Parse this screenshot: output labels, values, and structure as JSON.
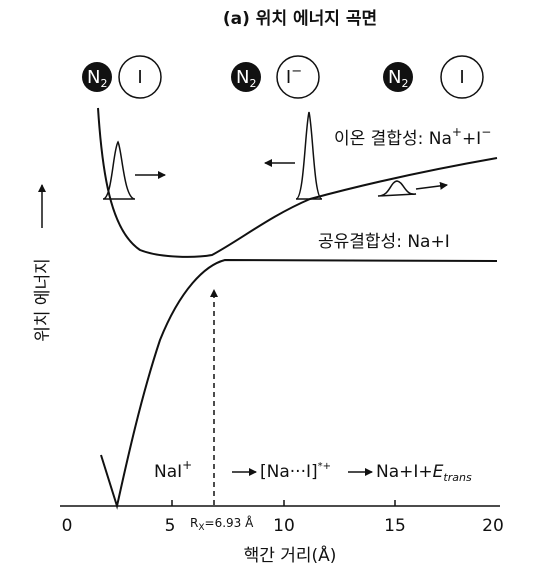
{
  "title": "(a) 위치 에너지 곡면",
  "x_axis": {
    "label": "핵간 거리(Å)",
    "ticks": [
      "0",
      "5",
      "10",
      "15",
      "20"
    ],
    "marker_label": "R",
    "marker_subscript": "X",
    "marker_value": "=6.93 Å"
  },
  "y_axis": {
    "label": "위치 에너지"
  },
  "curves": {
    "ionic": {
      "prefix": "이온 결합성: Na",
      "sup1": "+",
      "mid": "+I",
      "sup2": "−"
    },
    "covalent": {
      "text": "공유결합성: Na+I"
    }
  },
  "atoms": [
    {
      "n2": "N",
      "n2_sub": "2",
      "partner": "I",
      "partner_sup": ""
    },
    {
      "n2": "N",
      "n2_sub": "2",
      "partner": "I",
      "partner_sup": "−"
    },
    {
      "n2": "N",
      "n2_sub": "2",
      "partner": "I",
      "partner_sup": ""
    }
  ],
  "reaction": {
    "start": "NaI",
    "start_sup": "+",
    "intermediate": "[Na···I]",
    "intermediate_sup": "*+",
    "product": "Na+I+",
    "product_E": "E",
    "product_E_sub": "trans"
  }
}
